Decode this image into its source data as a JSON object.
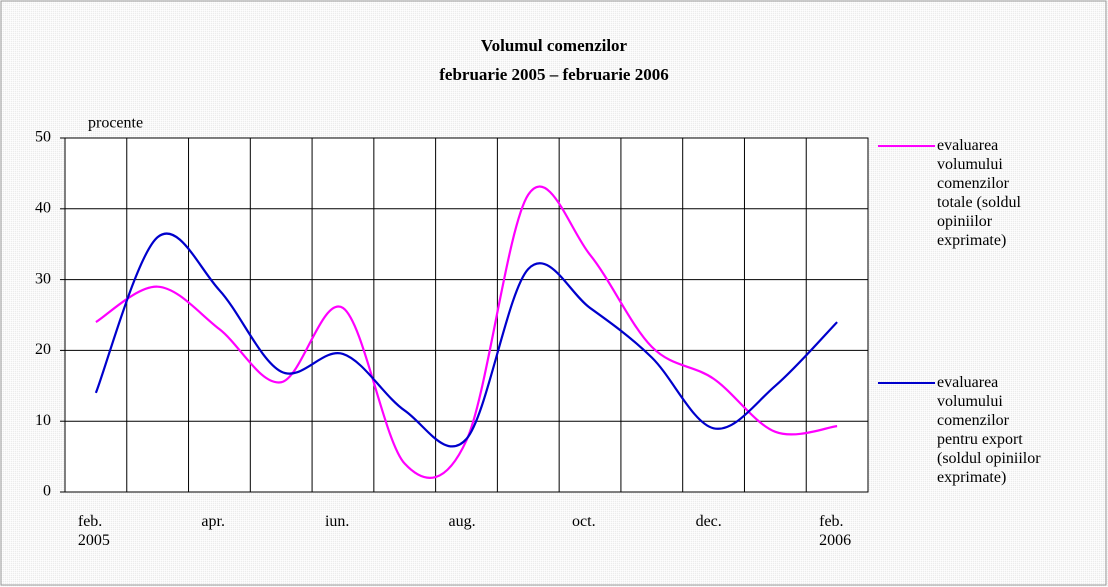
{
  "chart_data": {
    "type": "line",
    "title": "Volumul comenzilor",
    "subtitle": "februarie 2005 – februarie 2006",
    "y_label": "procente",
    "categories": [
      "feb. 2005",
      null,
      "apr.",
      null,
      "iun.",
      null,
      "aug.",
      null,
      "oct.",
      null,
      "dec.",
      null,
      "feb. 2006"
    ],
    "series": [
      {
        "name": "evaluarea volumului comenzilor totale (soldul opiniilor exprimate)",
        "color": "#ff00ff",
        "values": [
          24,
          29,
          23,
          15.5,
          26,
          4,
          7.3,
          42,
          33.5,
          20.5,
          16,
          8.5,
          9.3
        ]
      },
      {
        "name": "evaluarea volumului comenzilor pentru export (soldul opiniilor exprimate)",
        "color": "#0000cc",
        "values": [
          14,
          36,
          28.5,
          17,
          19.5,
          11.5,
          7.5,
          31.5,
          26,
          19,
          9,
          15,
          24
        ]
      }
    ],
    "ylim": [
      0,
      50
    ],
    "yticks": [
      0,
      10,
      20,
      30,
      40,
      50
    ],
    "grid": true,
    "legend": "right",
    "smooth": true
  }
}
